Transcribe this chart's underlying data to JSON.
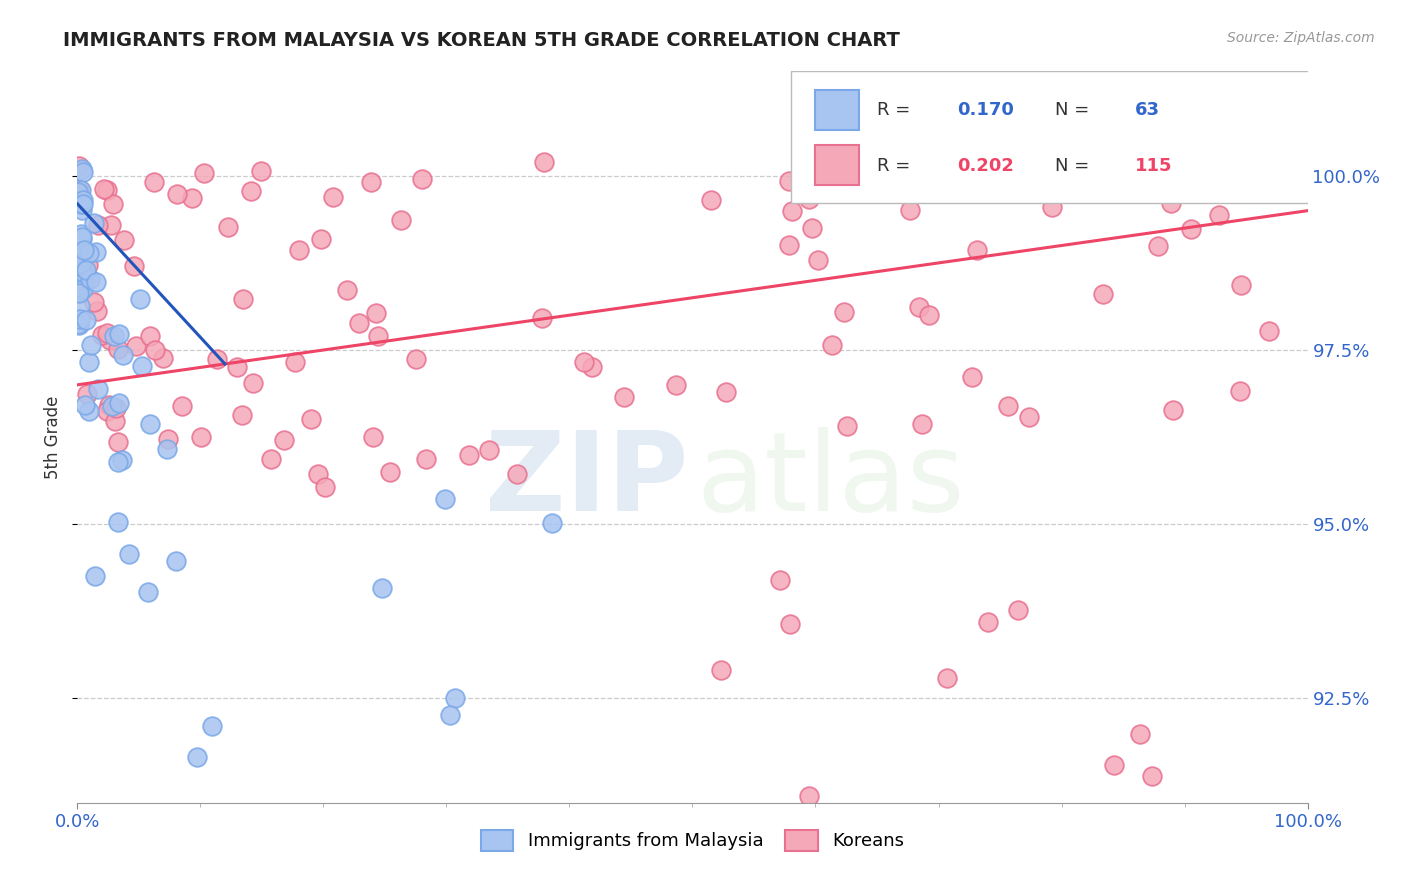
{
  "title": "IMMIGRANTS FROM MALAYSIA VS KOREAN 5TH GRADE CORRELATION CHART",
  "source_text": "Source: ZipAtlas.com",
  "ylabel": "5th Grade",
  "y_ticks": [
    92.5,
    95.0,
    97.5,
    100.0
  ],
  "y_labels": [
    "92.5%",
    "95.0%",
    "97.5%",
    "100.0%"
  ],
  "y_lim": [
    91.0,
    101.5
  ],
  "x_lim": [
    0.0,
    100.0
  ],
  "blue_face": "#a8c4f0",
  "blue_edge": "#7aa8e8",
  "pink_face": "#f5a8b8",
  "pink_edge": "#e87090",
  "legend_R_blue": "0.170",
  "legend_N_blue": "63",
  "legend_R_pink": "0.202",
  "legend_N_pink": "115",
  "legend_label_blue": "Immigrants from Malaysia",
  "legend_label_pink": "Koreans",
  "watermark_zip": "ZIP",
  "watermark_atlas": "atlas",
  "blue_trend_x": [
    0.0,
    12.0
  ],
  "blue_trend_y": [
    99.6,
    97.3
  ],
  "pink_trend_x": [
    0.0,
    100.0
  ],
  "pink_trend_y": [
    97.0,
    99.5
  ]
}
